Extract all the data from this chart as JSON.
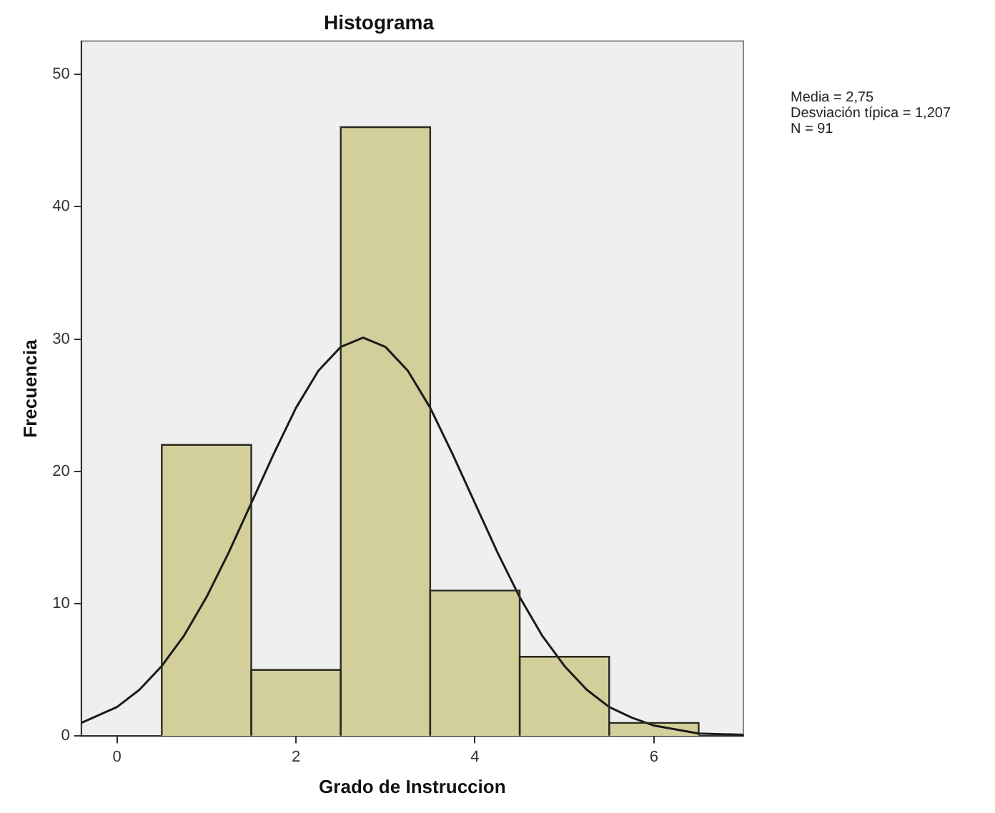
{
  "chart_data": {
    "type": "histogram",
    "title": "Histograma",
    "xlabel": "Grado de Instruccion",
    "ylabel": "Frecuencia",
    "bins": [
      0.5,
      1.5,
      2.5,
      3.5,
      4.5,
      5.5,
      6.5
    ],
    "values": [
      22,
      5,
      46,
      11,
      6,
      1
    ],
    "color": "#d3cf9b",
    "series": [
      {
        "type": "line",
        "color": "#1a1a1a",
        "x": [
          -0.4,
          0,
          0.25,
          0.5,
          0.75,
          1,
          1.25,
          1.5,
          1.75,
          2,
          2.25,
          2.5,
          2.75,
          3,
          3.25,
          3.5,
          3.75,
          4,
          4.25,
          4.5,
          4.75,
          5,
          5.25,
          5.5,
          5.75,
          6,
          6.5,
          7
        ],
        "values": [
          1.0,
          2.2,
          3.5,
          5.3,
          7.6,
          10.5,
          13.9,
          17.6,
          21.3,
          24.8,
          27.6,
          29.4,
          30.1,
          29.4,
          27.6,
          24.8,
          21.3,
          17.6,
          13.9,
          10.5,
          7.6,
          5.3,
          3.5,
          2.2,
          1.4,
          0.8,
          0.2,
          0.1
        ]
      }
    ],
    "xlim": [
      -0.4,
      7
    ],
    "xticks": [
      0,
      2,
      4,
      6
    ],
    "ylim": [
      0,
      52.5
    ],
    "yticks": [
      0,
      10,
      20,
      30,
      40,
      50
    ],
    "grid": false,
    "legend": false,
    "marker": "none",
    "annotations": [
      "Media = 2,75",
      "Desviación típica = 1,207",
      "N = 91"
    ]
  }
}
